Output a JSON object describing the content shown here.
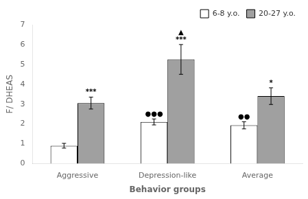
{
  "chart_data": {
    "type": "bar",
    "categories": [
      "Aggressive",
      "Depression-like",
      "Average"
    ],
    "series": [
      {
        "name": "6-8 y.o.",
        "color": "white",
        "values": [
          0.9,
          2.1,
          1.93
        ],
        "errors": [
          0.12,
          0.15,
          0.18
        ],
        "annotations": [
          null,
          "●●●",
          "●●"
        ]
      },
      {
        "name": "20-27 y.o.",
        "color": "#a0a0a0",
        "values": [
          3.05,
          5.25,
          3.4
        ],
        "errors": [
          0.3,
          0.75,
          0.42
        ],
        "annotations": [
          "***",
          "***",
          "*"
        ]
      }
    ],
    "annotations": [
      {
        "text": "▲",
        "category": "Depression-like",
        "series": "20-27 y.o."
      }
    ],
    "xlabel": "Behavior groups",
    "ylabel": "F/ DHEAS",
    "ylim": [
      0,
      7
    ],
    "yticks": [
      0,
      1,
      2,
      3,
      4,
      5,
      6,
      7
    ],
    "grid": false,
    "legend": "upper right"
  }
}
